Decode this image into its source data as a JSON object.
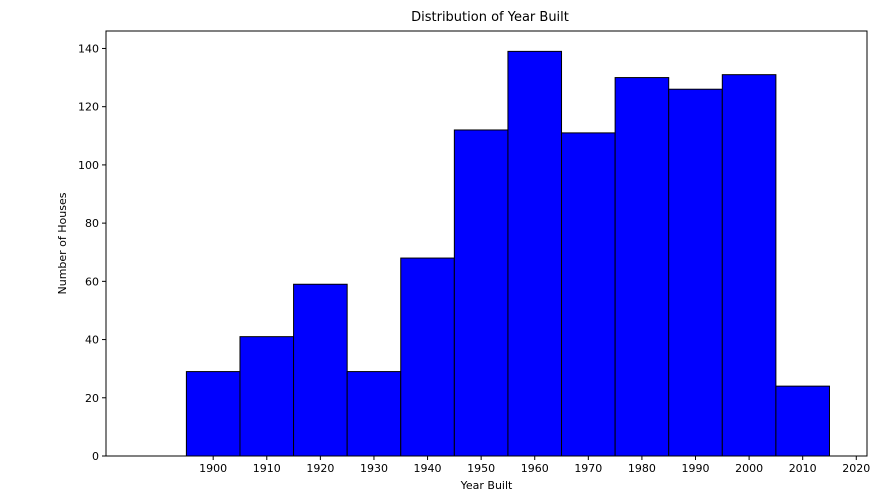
{
  "chart_data": {
    "type": "bar",
    "title": "Distribution of Year Built",
    "xlabel": "Year Built",
    "ylabel": "Number of Houses",
    "bins": [
      {
        "start": 1895,
        "end": 1905,
        "value": 29
      },
      {
        "start": 1905,
        "end": 1915,
        "value": 41
      },
      {
        "start": 1915,
        "end": 1925,
        "value": 59
      },
      {
        "start": 1925,
        "end": 1935,
        "value": 29
      },
      {
        "start": 1935,
        "end": 1945,
        "value": 68
      },
      {
        "start": 1945,
        "end": 1955,
        "value": 112
      },
      {
        "start": 1955,
        "end": 1965,
        "value": 139
      },
      {
        "start": 1965,
        "end": 1975,
        "value": 111
      },
      {
        "start": 1975,
        "end": 1985,
        "value": 130
      },
      {
        "start": 1985,
        "end": 1995,
        "value": 126
      },
      {
        "start": 1995,
        "end": 2005,
        "value": 131
      },
      {
        "start": 2005,
        "end": 2015,
        "value": 24
      }
    ],
    "xlim": [
      1880,
      2022
    ],
    "ylim": [
      0,
      146
    ],
    "xticks": [
      1900,
      1910,
      1920,
      1930,
      1940,
      1950,
      1960,
      1970,
      1980,
      1990,
      2000,
      2010,
      2020
    ],
    "yticks": [
      0,
      20,
      40,
      60,
      80,
      100,
      120,
      140
    ],
    "bar_color": "#0000ff",
    "edge_color": "#000000",
    "grid": false,
    "legend": "none"
  }
}
